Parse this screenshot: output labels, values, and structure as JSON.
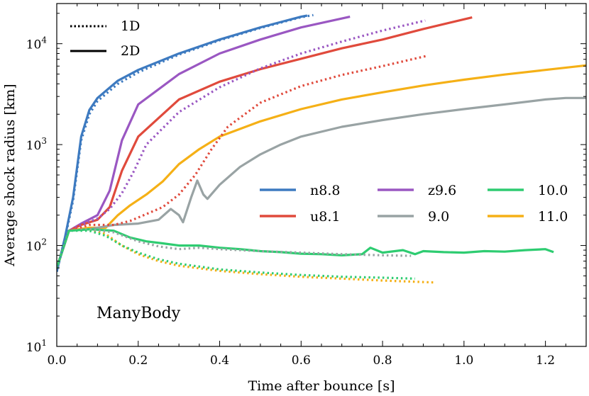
{
  "chart_data": {
    "type": "line",
    "title": "",
    "xlabel": "Time after bounce [s]",
    "ylabel": "Average shock radius [km]",
    "xlim": [
      0.0,
      1.3
    ],
    "ylim": [
      10,
      25000
    ],
    "yscale": "log",
    "annotation": "ManyBody",
    "x_ticks": [
      0.0,
      0.2,
      0.4,
      0.6,
      0.8,
      1.0,
      1.2
    ],
    "x_tick_labels": [
      "0.0",
      "0.2",
      "0.4",
      "0.6",
      "0.8",
      "1.0",
      "1.2"
    ],
    "y_ticks": [
      10,
      100,
      1000,
      10000
    ],
    "y_tick_labels": [
      {
        "base": "10",
        "exp": "1"
      },
      {
        "base": "10",
        "exp": "2"
      },
      {
        "base": "10",
        "exp": "3"
      },
      {
        "base": "10",
        "exp": "4"
      }
    ],
    "style_legend": [
      {
        "label": "1D",
        "dash": "dotted"
      },
      {
        "label": "2D",
        "dash": "solid"
      }
    ],
    "model_legend": [
      {
        "label": "n8.8",
        "color": "#3d7ac0"
      },
      {
        "label": "u8.1",
        "color": "#e04a3c"
      },
      {
        "label": "z9.6",
        "color": "#9a57c2"
      },
      {
        "label": "9.0",
        "color": "#99a3a4"
      },
      {
        "label": "10.0",
        "color": "#2ecc71"
      },
      {
        "label": "11.0",
        "color": "#f5b016"
      }
    ],
    "series": [
      {
        "name": "n8.8",
        "dim": "2D",
        "color": "#3d7ac0",
        "x": [
          0.0,
          0.02,
          0.04,
          0.06,
          0.08,
          0.1,
          0.15,
          0.2,
          0.3,
          0.4,
          0.5,
          0.6,
          0.615
        ],
        "y": [
          55,
          120,
          300,
          1200,
          2200,
          2900,
          4300,
          5500,
          8000,
          11000,
          14500,
          18500,
          19000
        ]
      },
      {
        "name": "n8.8",
        "dim": "1D",
        "color": "#3d7ac0",
        "x": [
          0.0,
          0.02,
          0.04,
          0.06,
          0.08,
          0.1,
          0.15,
          0.2,
          0.3,
          0.4,
          0.5,
          0.6,
          0.63
        ],
        "y": [
          55,
          115,
          280,
          1100,
          2000,
          2700,
          4000,
          5200,
          7800,
          10800,
          14300,
          18300,
          19200
        ]
      },
      {
        "name": "z9.6",
        "dim": "2D",
        "color": "#9a57c2",
        "x": [
          0.0,
          0.03,
          0.06,
          0.1,
          0.13,
          0.16,
          0.2,
          0.3,
          0.4,
          0.5,
          0.6,
          0.72
        ],
        "y": [
          60,
          140,
          165,
          200,
          350,
          1100,
          2500,
          5000,
          8000,
          11000,
          14500,
          18500
        ]
      },
      {
        "name": "z9.6",
        "dim": "1D",
        "color": "#9a57c2",
        "x": [
          0.0,
          0.03,
          0.06,
          0.1,
          0.13,
          0.16,
          0.19,
          0.22,
          0.3,
          0.4,
          0.5,
          0.6,
          0.7,
          0.8,
          0.9,
          0.905
        ],
        "y": [
          60,
          140,
          160,
          185,
          230,
          330,
          550,
          1000,
          2100,
          3700,
          5700,
          8000,
          10500,
          13500,
          16800,
          17000
        ]
      },
      {
        "name": "u8.1",
        "dim": "2D",
        "color": "#e04a3c",
        "x": [
          0.0,
          0.03,
          0.06,
          0.1,
          0.13,
          0.16,
          0.2,
          0.3,
          0.4,
          0.5,
          0.6,
          0.7,
          0.8,
          0.9,
          1.02
        ],
        "y": [
          60,
          140,
          160,
          180,
          240,
          550,
          1200,
          2800,
          4200,
          5600,
          7100,
          9000,
          11000,
          14000,
          18200
        ]
      },
      {
        "name": "u8.1",
        "dim": "1D",
        "color": "#e04a3c",
        "x": [
          0.0,
          0.03,
          0.08,
          0.14,
          0.18,
          0.22,
          0.26,
          0.3,
          0.34,
          0.38,
          0.42,
          0.5,
          0.6,
          0.7,
          0.8,
          0.91
        ],
        "y": [
          60,
          140,
          160,
          160,
          175,
          205,
          240,
          320,
          500,
          900,
          1500,
          2600,
          3800,
          4900,
          6000,
          7600
        ]
      },
      {
        "name": "11.0",
        "dim": "2D",
        "color": "#f5b016",
        "x": [
          0.0,
          0.03,
          0.08,
          0.12,
          0.15,
          0.18,
          0.22,
          0.26,
          0.3,
          0.35,
          0.4,
          0.5,
          0.6,
          0.7,
          0.8,
          0.9,
          1.0,
          1.1,
          1.2,
          1.3
        ],
        "y": [
          60,
          140,
          150,
          150,
          200,
          250,
          320,
          430,
          640,
          900,
          1200,
          1700,
          2250,
          2800,
          3300,
          3850,
          4400,
          4950,
          5500,
          6100
        ]
      },
      {
        "name": "11.0",
        "dim": "1D",
        "color": "#f5b016",
        "x": [
          0.0,
          0.03,
          0.08,
          0.12,
          0.16,
          0.2,
          0.25,
          0.3,
          0.4,
          0.5,
          0.6,
          0.7,
          0.8,
          0.93
        ],
        "y": [
          60,
          140,
          145,
          130,
          100,
          82,
          70,
          63,
          56,
          52,
          49,
          47,
          45,
          43
        ]
      },
      {
        "name": "9.0",
        "dim": "2D",
        "color": "#99a3a4",
        "x": [
          0.0,
          0.03,
          0.08,
          0.14,
          0.2,
          0.25,
          0.28,
          0.3,
          0.31,
          0.33,
          0.345,
          0.36,
          0.37,
          0.4,
          0.45,
          0.5,
          0.55,
          0.6,
          0.7,
          0.8,
          0.9,
          1.0,
          1.1,
          1.2,
          1.25,
          1.3
        ],
        "y": [
          60,
          140,
          145,
          160,
          165,
          180,
          230,
          200,
          170,
          300,
          440,
          320,
          290,
          400,
          600,
          800,
          1000,
          1200,
          1500,
          1750,
          2000,
          2250,
          2500,
          2800,
          2900,
          2900
        ]
      },
      {
        "name": "9.0",
        "dim": "1D",
        "color": "#99a3a4",
        "x": [
          0.0,
          0.03,
          0.08,
          0.14,
          0.2,
          0.25,
          0.3,
          0.35,
          0.4,
          0.5,
          0.6,
          0.7,
          0.8,
          0.87
        ],
        "y": [
          60,
          140,
          145,
          135,
          110,
          98,
          92,
          95,
          92,
          88,
          85,
          82,
          80,
          79
        ]
      },
      {
        "name": "10.0",
        "dim": "2D",
        "color": "#2ecc71",
        "x": [
          0.0,
          0.03,
          0.08,
          0.14,
          0.18,
          0.22,
          0.26,
          0.3,
          0.35,
          0.4,
          0.45,
          0.5,
          0.55,
          0.6,
          0.65,
          0.7,
          0.75,
          0.77,
          0.8,
          0.85,
          0.88,
          0.9,
          0.95,
          1.0,
          1.05,
          1.1,
          1.15,
          1.2,
          1.22
        ],
        "y": [
          60,
          140,
          145,
          140,
          120,
          110,
          105,
          100,
          100,
          95,
          92,
          88,
          86,
          83,
          82,
          80,
          82,
          95,
          85,
          90,
          82,
          88,
          86,
          85,
          88,
          87,
          90,
          92,
          86
        ]
      },
      {
        "name": "10.0",
        "dim": "1D",
        "color": "#2ecc71",
        "x": [
          0.0,
          0.03,
          0.08,
          0.12,
          0.16,
          0.2,
          0.25,
          0.3,
          0.4,
          0.5,
          0.6,
          0.7,
          0.8,
          0.88
        ],
        "y": [
          60,
          140,
          140,
          125,
          100,
          85,
          73,
          66,
          58,
          54,
          51,
          49,
          48,
          47
        ]
      }
    ]
  }
}
